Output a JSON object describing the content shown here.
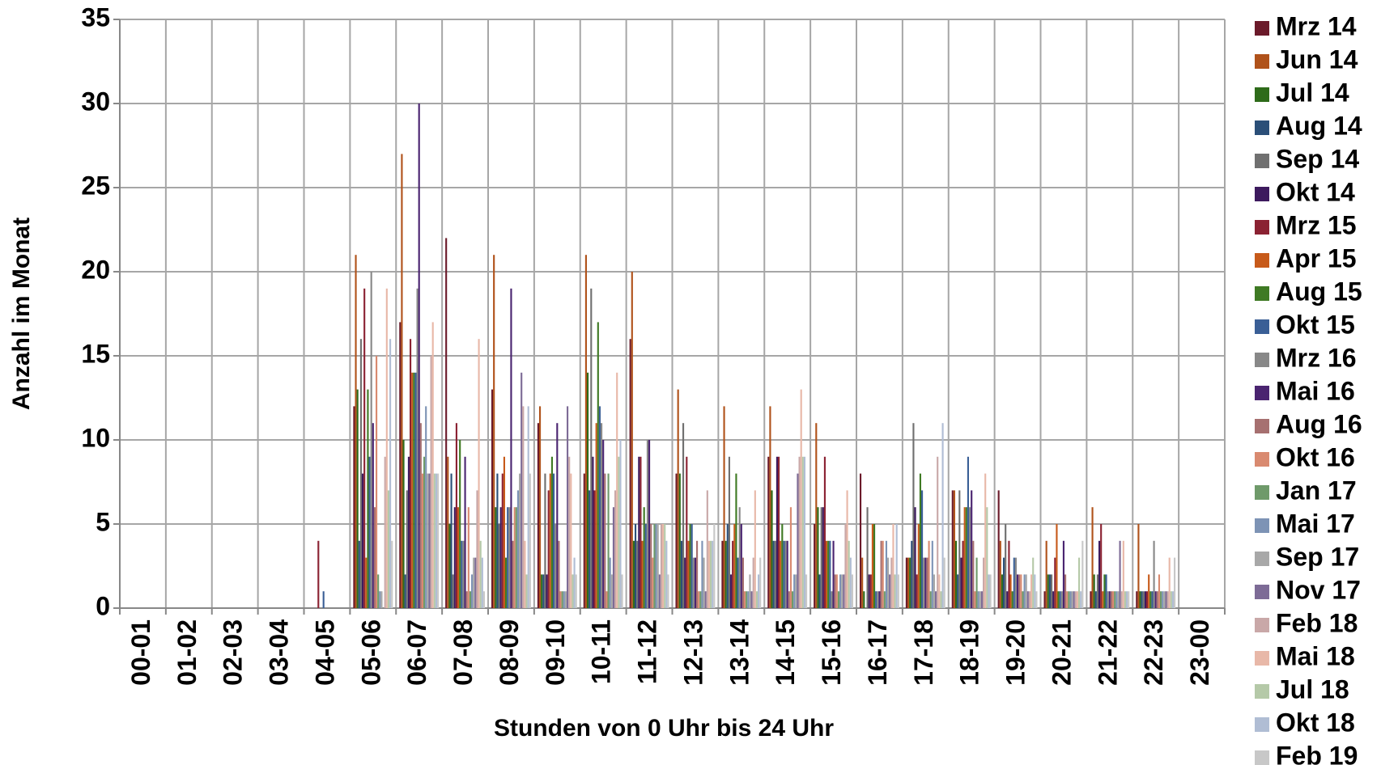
{
  "chart_data": {
    "type": "bar",
    "xlabel": "Stunden von 0 Uhr bis 24 Uhr",
    "ylabel": "Anzahl im Monat",
    "categories": [
      "00-01",
      "01-02",
      "02-03",
      "03-04",
      "04-05",
      "05-06",
      "06-07",
      "07-08",
      "08-09",
      "09-10",
      "10-11",
      "11-12",
      "12-13",
      "13-14",
      "14-15",
      "15-16",
      "16-17",
      "17-18",
      "18-19",
      "19-20",
      "20-21",
      "21-22",
      "22-23",
      "23-00"
    ],
    "ylim": [
      0,
      35
    ],
    "yticks": [
      0,
      5,
      10,
      15,
      20,
      25,
      30,
      35
    ],
    "grid": true,
    "legend": "right",
    "series": [
      {
        "name": "Mrz 14",
        "color": "#6b1a2a",
        "values": [
          0,
          0,
          0,
          0,
          0,
          12,
          17,
          22,
          13,
          11,
          8,
          16,
          8,
          4,
          9,
          5,
          8,
          3,
          7,
          7,
          1,
          1,
          1,
          0
        ]
      },
      {
        "name": "Jun 14",
        "color": "#b0521a",
        "values": [
          0,
          0,
          0,
          0,
          0,
          21,
          27,
          9,
          21,
          12,
          21,
          20,
          13,
          12,
          12,
          11,
          3,
          3,
          7,
          4,
          4,
          6,
          5,
          0
        ]
      },
      {
        "name": "Jul 14",
        "color": "#2e6b1a",
        "values": [
          0,
          0,
          0,
          0,
          0,
          13,
          10,
          5,
          6,
          2,
          14,
          4,
          8,
          4,
          7,
          6,
          1,
          3,
          4,
          2,
          2,
          2,
          1,
          0
        ]
      },
      {
        "name": "Aug 14",
        "color": "#2b4f78",
        "values": [
          0,
          0,
          0,
          0,
          0,
          4,
          2,
          8,
          8,
          2,
          7,
          5,
          4,
          5,
          4,
          2,
          0,
          4,
          2,
          3,
          2,
          1,
          1,
          0
        ]
      },
      {
        "name": "Sep 14",
        "color": "#707070",
        "values": [
          0,
          0,
          0,
          0,
          0,
          16,
          7,
          2,
          5,
          8,
          19,
          4,
          11,
          9,
          4,
          6,
          6,
          11,
          7,
          5,
          2,
          2,
          1,
          0
        ]
      },
      {
        "name": "Okt 14",
        "color": "#3d1a5e",
        "values": [
          0,
          0,
          0,
          0,
          0,
          8,
          9,
          6,
          6,
          2,
          9,
          9,
          3,
          2,
          9,
          6,
          2,
          6,
          3,
          1,
          1,
          4,
          1,
          0
        ]
      },
      {
        "name": "Mrz 15",
        "color": "#8b2232",
        "values": [
          0,
          0,
          0,
          0,
          4,
          19,
          16,
          11,
          8,
          7,
          7,
          9,
          9,
          4,
          9,
          9,
          2,
          2,
          4,
          4,
          3,
          5,
          1,
          0
        ]
      },
      {
        "name": "Apr 15",
        "color": "#c75a1a",
        "values": [
          0,
          0,
          0,
          0,
          0,
          3,
          14,
          6,
          9,
          8,
          11,
          4,
          4,
          5,
          4,
          4,
          5,
          5,
          6,
          2,
          5,
          1,
          2,
          0
        ]
      },
      {
        "name": "Aug 15",
        "color": "#3f7a24",
        "values": [
          0,
          0,
          0,
          0,
          0,
          13,
          14,
          10,
          3,
          9,
          17,
          6,
          5,
          8,
          5,
          4,
          5,
          8,
          6,
          1,
          1,
          2,
          1,
          0
        ]
      },
      {
        "name": "Okt 15",
        "color": "#3a5f96",
        "values": [
          0,
          0,
          0,
          0,
          1,
          9,
          14,
          4,
          6,
          8,
          12,
          5,
          5,
          3,
          4,
          4,
          1,
          7,
          9,
          3,
          1,
          2,
          1,
          0
        ]
      },
      {
        "name": "Mrz 16",
        "color": "#888888",
        "values": [
          0,
          0,
          0,
          0,
          0,
          20,
          19,
          4,
          6,
          5,
          11,
          10,
          3,
          6,
          4,
          1,
          1,
          3,
          6,
          3,
          1,
          1,
          4,
          0
        ]
      },
      {
        "name": "Mai 16",
        "color": "#4a2470",
        "values": [
          0,
          0,
          0,
          0,
          0,
          11,
          30,
          9,
          19,
          11,
          10,
          10,
          3,
          5,
          4,
          4,
          1,
          3,
          7,
          2,
          4,
          1,
          1,
          0
        ]
      },
      {
        "name": "Aug 16",
        "color": "#a67070",
        "values": [
          0,
          0,
          0,
          0,
          0,
          6,
          11,
          1,
          4,
          4,
          8,
          5,
          4,
          3,
          1,
          2,
          4,
          3,
          4,
          2,
          2,
          1,
          1,
          0
        ]
      },
      {
        "name": "Okt 16",
        "color": "#d98a70",
        "values": [
          0,
          0,
          0,
          0,
          0,
          15,
          8,
          6,
          6,
          1,
          1,
          3,
          1,
          1,
          6,
          2,
          4,
          4,
          1,
          2,
          1,
          1,
          2,
          0
        ]
      },
      {
        "name": "Jan 17",
        "color": "#6f9a6a",
        "values": [
          0,
          0,
          0,
          0,
          0,
          2,
          9,
          1,
          6,
          1,
          8,
          5,
          1,
          1,
          1,
          1,
          1,
          1,
          3,
          1,
          1,
          1,
          1,
          0
        ]
      },
      {
        "name": "Mai 17",
        "color": "#7d93b5",
        "values": [
          0,
          0,
          0,
          0,
          0,
          1,
          12,
          2,
          7,
          1,
          3,
          5,
          4,
          1,
          2,
          2,
          4,
          4,
          1,
          2,
          1,
          1,
          1,
          0
        ]
      },
      {
        "name": "Sep 17",
        "color": "#a8a8a8",
        "values": [
          0,
          0,
          0,
          0,
          0,
          1,
          8,
          3,
          8,
          1,
          2,
          5,
          3,
          2,
          2,
          2,
          3,
          2,
          1,
          2,
          1,
          1,
          1,
          0
        ]
      },
      {
        "name": "Nov 17",
        "color": "#7d6b96",
        "values": [
          0,
          0,
          0,
          0,
          0,
          0,
          8,
          3,
          14,
          12,
          6,
          2,
          1,
          1,
          8,
          2,
          2,
          1,
          1,
          1,
          1,
          4,
          1,
          0
        ]
      },
      {
        "name": "Feb 18",
        "color": "#c9a8a8",
        "values": [
          0,
          0,
          0,
          0,
          0,
          9,
          15,
          7,
          12,
          9,
          7,
          5,
          7,
          3,
          9,
          5,
          3,
          9,
          3,
          1,
          1,
          1,
          1,
          0
        ]
      },
      {
        "name": "Mai 18",
        "color": "#e8b8a8",
        "values": [
          0,
          0,
          0,
          0,
          0,
          19,
          17,
          16,
          4,
          8,
          14,
          5,
          4,
          7,
          13,
          7,
          5,
          2,
          8,
          2,
          1,
          4,
          3,
          0
        ]
      },
      {
        "name": "Jul 18",
        "color": "#b5c9a8",
        "values": [
          0,
          0,
          0,
          0,
          0,
          7,
          8,
          4,
          2,
          2,
          9,
          5,
          4,
          1,
          9,
          4,
          2,
          1,
          6,
          3,
          3,
          1,
          1,
          0
        ]
      },
      {
        "name": "Okt 18",
        "color": "#b0bdd4",
        "values": [
          0,
          0,
          0,
          0,
          0,
          16,
          8,
          3,
          12,
          3,
          10,
          4,
          4,
          2,
          9,
          3,
          5,
          11,
          2,
          2,
          1,
          1,
          1,
          0
        ]
      },
      {
        "name": "Feb 19",
        "color": "#c8c8c8",
        "values": [
          0,
          0,
          0,
          0,
          0,
          4,
          8,
          1,
          8,
          2,
          2,
          2,
          5,
          3,
          2,
          2,
          2,
          3,
          2,
          1,
          4,
          1,
          3,
          0
        ]
      }
    ]
  }
}
